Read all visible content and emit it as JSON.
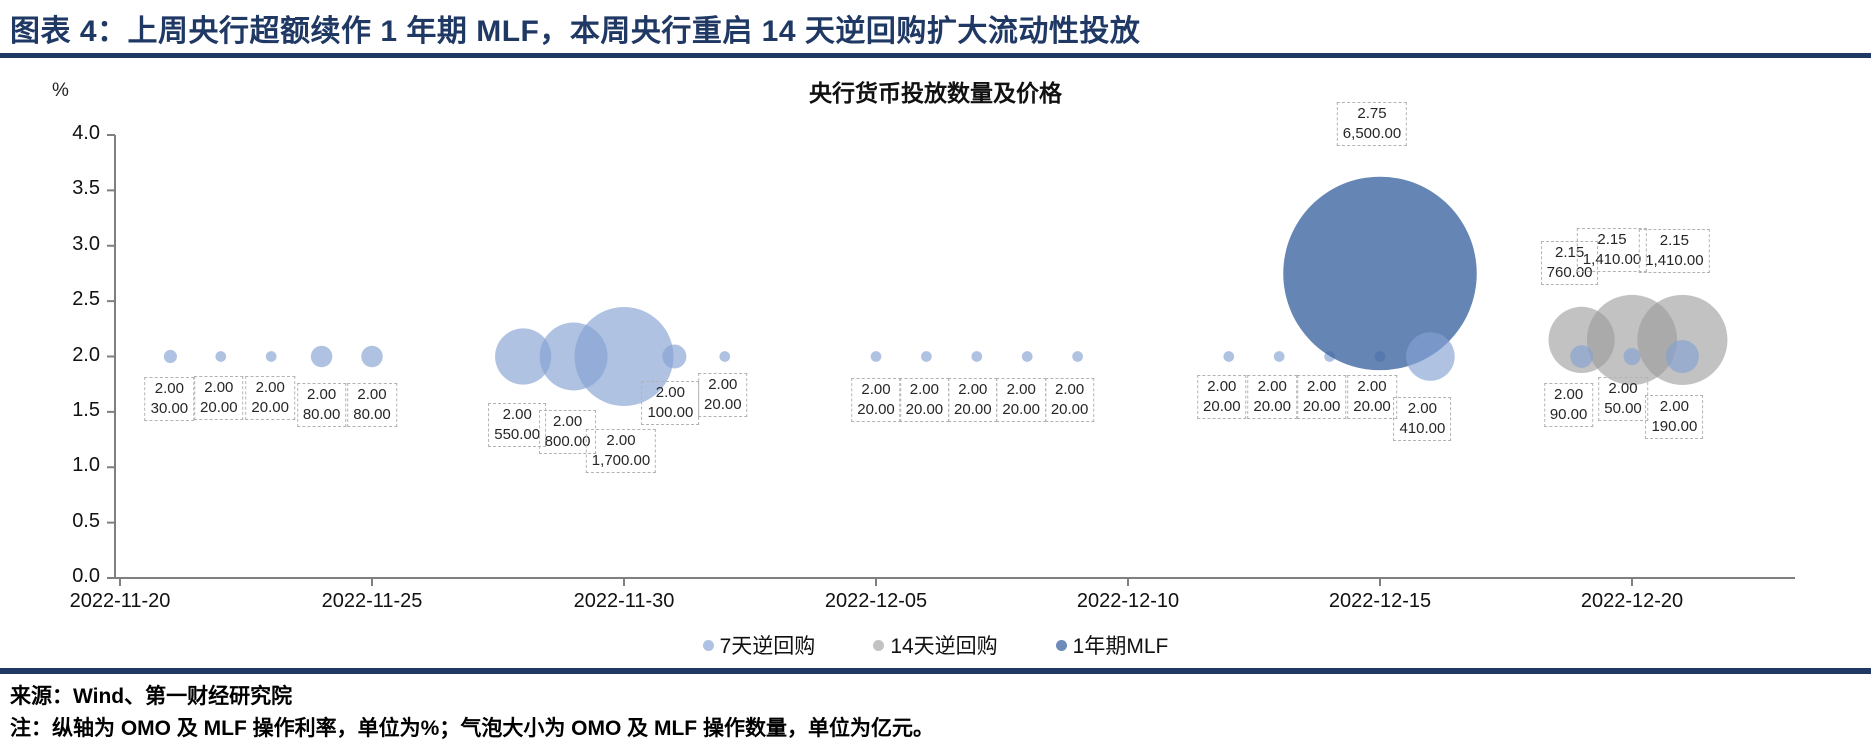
{
  "header": {
    "title": "图表 4：上周央行超额续作 1 年期 MLF，本周央行重启 14 天逆回购扩大流动性投放"
  },
  "footer": {
    "source": "来源：Wind、第一财经研究院",
    "note": "注：纵轴为 OMO 及 MLF 操作利率，单位为%；气泡大小为 OMO 及 MLF 操作数量，单位为亿元。"
  },
  "chart_data": {
    "type": "bubble",
    "title": "央行货币投放数量及价格",
    "y_unit": "%",
    "ylabel": "OMO 及 MLF 操作利率 (%)",
    "bubble_size": "OMO 及 MLF 操作数量 (亿元)",
    "ylim": [
      0.0,
      4.0
    ],
    "grid": false,
    "legend_position": "bottom",
    "x_origin": "2022-11-20",
    "y_ticks": [
      "4.0",
      "3.5",
      "3.0",
      "2.5",
      "2.0",
      "1.5",
      "1.0",
      "0.5",
      "0.0"
    ],
    "x_ticks": [
      "2022-11-20",
      "2022-11-25",
      "2022-11-30",
      "2022-12-05",
      "2022-12-10",
      "2022-12-15",
      "2022-12-20"
    ],
    "legend": [
      {
        "name": "7天逆回购",
        "color": "#AFC2E4"
      },
      {
        "name": "14天逆回购",
        "color": "#C2C2C2"
      },
      {
        "name": "1年期MLF",
        "color": "#6D8CBA"
      }
    ],
    "series": [
      {
        "name": "14天逆回购",
        "color": "#999999",
        "opacity": 0.6,
        "z": 0,
        "points": [
          {
            "date": "2022-12-19",
            "rate": 2.15,
            "amount": 760,
            "rate_label": "2.15",
            "amount_label": "760.00",
            "dx": -12,
            "dy": -77
          },
          {
            "date": "2022-12-20",
            "rate": 2.15,
            "amount": 1410,
            "rate_label": "2.15",
            "amount_label": "1,410.00",
            "dx": -20,
            "dy": -90
          },
          {
            "date": "2022-12-21",
            "rate": 2.15,
            "amount": 1410,
            "rate_label": "2.15",
            "amount_label": "1,410.00",
            "dx": -8,
            "dy": -89
          }
        ]
      },
      {
        "name": "7天逆回购",
        "color": "#84A1D2",
        "opacity": 0.65,
        "z": 1,
        "points": [
          {
            "date": "2022-11-21",
            "rate": 2.0,
            "amount": 30,
            "rate_label": "2.00",
            "amount_label": "30.00",
            "dx": -1,
            "dy": 42
          },
          {
            "date": "2022-11-22",
            "rate": 2.0,
            "amount": 20,
            "rate_label": "2.00",
            "amount_label": "20.00",
            "dx": -2,
            "dy": 41
          },
          {
            "date": "2022-11-23",
            "rate": 2.0,
            "amount": 20,
            "rate_label": "2.00",
            "amount_label": "20.00",
            "dx": -1,
            "dy": 41
          },
          {
            "date": "2022-11-24",
            "rate": 2.0,
            "amount": 80,
            "rate_label": "2.00",
            "amount_label": "80.00",
            "dx": 0,
            "dy": 48
          },
          {
            "date": "2022-11-25",
            "rate": 2.0,
            "amount": 80,
            "rate_label": "2.00",
            "amount_label": "80.00",
            "dx": 0,
            "dy": 48
          },
          {
            "date": "2022-11-28",
            "rate": 2.0,
            "amount": 550,
            "rate_label": "2.00",
            "amount_label": "550.00",
            "dx": -6,
            "dy": 68
          },
          {
            "date": "2022-11-29",
            "rate": 2.0,
            "amount": 800,
            "rate_label": "2.00",
            "amount_label": "800.00",
            "dx": -6,
            "dy": 75
          },
          {
            "date": "2022-11-30",
            "rate": 2.0,
            "amount": 1700,
            "rate_label": "2.00",
            "amount_label": "1,700.00",
            "dx": -3,
            "dy": 94
          },
          {
            "date": "2022-12-01",
            "rate": 2.0,
            "amount": 100,
            "rate_label": "2.00",
            "amount_label": "100.00",
            "dx": -4,
            "dy": 46
          },
          {
            "date": "2022-12-02",
            "rate": 2.0,
            "amount": 20,
            "rate_label": "2.00",
            "amount_label": "20.00",
            "dx": -2,
            "dy": 38
          },
          {
            "date": "2022-12-05",
            "rate": 2.0,
            "amount": 20,
            "rate_label": "2.00",
            "amount_label": "20.00",
            "dx": 0,
            "dy": 43
          },
          {
            "date": "2022-12-06",
            "rate": 2.0,
            "amount": 20,
            "rate_label": "2.00",
            "amount_label": "20.00",
            "dx": -2,
            "dy": 43
          },
          {
            "date": "2022-12-07",
            "rate": 2.0,
            "amount": 20,
            "rate_label": "2.00",
            "amount_label": "20.00",
            "dx": -4,
            "dy": 43
          },
          {
            "date": "2022-12-08",
            "rate": 2.0,
            "amount": 20,
            "rate_label": "2.00",
            "amount_label": "20.00",
            "dx": -6,
            "dy": 43
          },
          {
            "date": "2022-12-09",
            "rate": 2.0,
            "amount": 20,
            "rate_label": "2.00",
            "amount_label": "20.00",
            "dx": -8,
            "dy": 43
          },
          {
            "date": "2022-12-12",
            "rate": 2.0,
            "amount": 20,
            "rate_label": "2.00",
            "amount_label": "20.00",
            "dx": -7,
            "dy": 40
          },
          {
            "date": "2022-12-13",
            "rate": 2.0,
            "amount": 20,
            "rate_label": "2.00",
            "amount_label": "20.00",
            "dx": -7,
            "dy": 40
          },
          {
            "date": "2022-12-14",
            "rate": 2.0,
            "amount": 20,
            "rate_label": "2.00",
            "amount_label": "20.00",
            "dx": -8,
            "dy": 40
          },
          {
            "date": "2022-12-15",
            "rate": 2.0,
            "amount": 20,
            "rate_label": "2.00",
            "amount_label": "20.00",
            "dx": -8,
            "dy": 40
          },
          {
            "date": "2022-12-16",
            "rate": 2.0,
            "amount": 410,
            "rate_label": "2.00",
            "amount_label": "410.00",
            "dx": -8,
            "dy": 62,
            "z": 3
          },
          {
            "date": "2022-12-19",
            "rate": 2.0,
            "amount": 90,
            "rate_label": "2.00",
            "amount_label": "90.00",
            "dx": -13,
            "dy": 48
          },
          {
            "date": "2022-12-20",
            "rate": 2.0,
            "amount": 50,
            "rate_label": "2.00",
            "amount_label": "50.00",
            "dx": -9,
            "dy": 42
          },
          {
            "date": "2022-12-21",
            "rate": 2.0,
            "amount": 190,
            "rate_label": "2.00",
            "amount_label": "190.00",
            "dx": -8,
            "dy": 60
          }
        ]
      },
      {
        "name": "1年期MLF",
        "color": "#3E66A3",
        "opacity": 0.8,
        "z": 2,
        "points": [
          {
            "date": "2022-12-15",
            "rate": 2.75,
            "amount": 6500,
            "rate_label": "2.75",
            "amount_label": "6,500.00",
            "dx": -8,
            "dy": -149
          }
        ]
      }
    ]
  }
}
